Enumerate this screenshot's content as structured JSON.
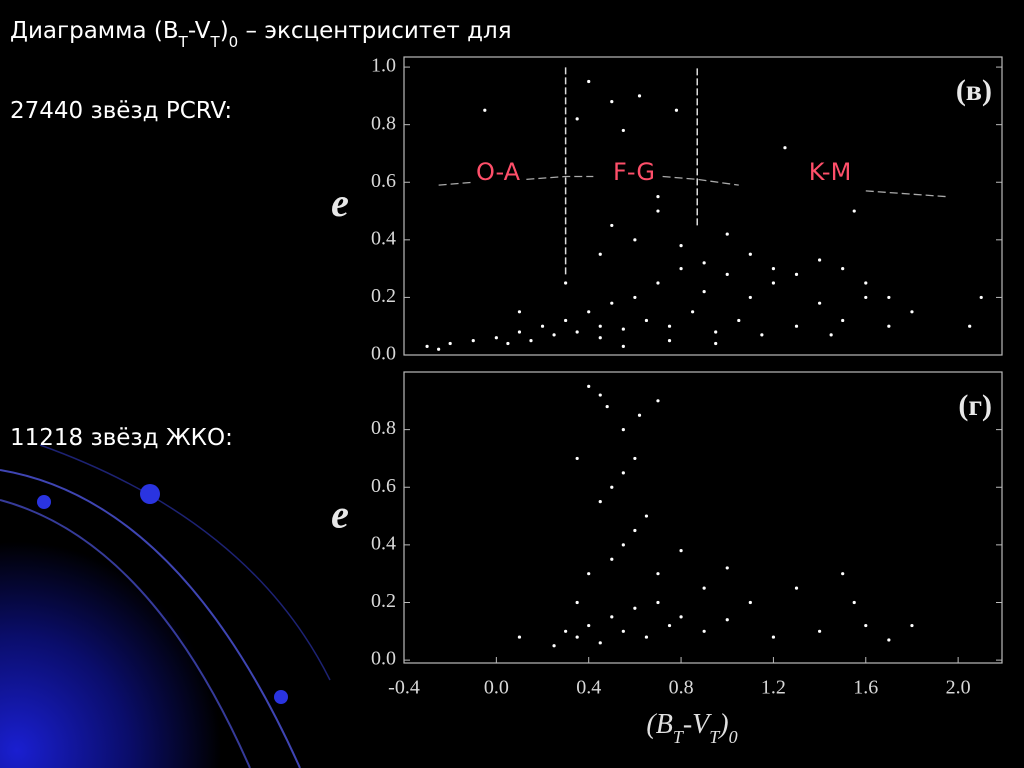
{
  "slide": {
    "title_parts": [
      "Диаграмма (B",
      "T",
      "-V",
      "T",
      ")",
      "0",
      " – эксцентриситет для"
    ],
    "label_top": "27440 звёзд PCRV:",
    "label_bottom": "11218 звёзд ЖКО:"
  },
  "chart_data": [
    {
      "type": "scatter",
      "panel_label": "(в)",
      "y_label": "e",
      "color": "#ffffff",
      "regions": [
        "O-A",
        "F-G",
        "K-M"
      ],
      "dividers": [
        {
          "x": 0.3,
          "y": [
            0.28,
            1.0
          ]
        },
        {
          "x": 0.87,
          "y": [
            0.45,
            1.0
          ]
        }
      ],
      "trend": {
        "x": [
          -0.25,
          -0.1,
          null,
          0.13,
          0.3,
          0.42,
          null,
          0.72,
          0.87,
          1.05,
          null,
          1.6,
          1.95
        ],
        "y": [
          0.59,
          0.6,
          null,
          0.61,
          0.62,
          0.62,
          null,
          0.62,
          0.61,
          0.59,
          null,
          0.57,
          0.55
        ]
      },
      "xlim": [
        -0.4,
        2.19
      ],
      "ylim": [
        0,
        1.035
      ],
      "yticks": [
        {
          "value": 0,
          "label": "0.0"
        },
        0.2,
        0.4,
        0.6,
        0.8,
        {
          "value": 1,
          "label": "1.0"
        }
      ],
      "x": [
        -0.3,
        -0.2,
        -0.1,
        0.0,
        0.05,
        0.1,
        0.15,
        0.2,
        0.25,
        0.3,
        0.35,
        0.4,
        0.45,
        0.5,
        0.55,
        0.6,
        0.65,
        0.7,
        0.75,
        0.8,
        0.85,
        0.9,
        0.95,
        1.0,
        1.05,
        1.1,
        1.15,
        1.2,
        1.3,
        1.4,
        1.5,
        1.6,
        1.7,
        1.8,
        -0.25,
        0.1,
        0.3,
        0.45,
        0.5,
        0.6,
        0.7,
        0.8,
        0.9,
        1.0,
        1.1,
        1.2,
        1.3,
        1.4,
        1.5,
        1.6,
        1.7,
        0.35,
        0.4,
        0.5,
        0.55,
        0.62,
        0.7,
        0.78,
        1.25,
        1.55,
        0.45,
        0.55,
        0.75,
        0.95,
        1.45,
        -0.05,
        2.05,
        2.1
      ],
      "values": [
        0.03,
        0.04,
        0.05,
        0.06,
        0.04,
        0.08,
        0.05,
        0.1,
        0.07,
        0.12,
        0.08,
        0.15,
        0.1,
        0.18,
        0.09,
        0.2,
        0.12,
        0.25,
        0.1,
        0.3,
        0.15,
        0.22,
        0.08,
        0.28,
        0.12,
        0.2,
        0.07,
        0.25,
        0.1,
        0.18,
        0.12,
        0.2,
        0.1,
        0.15,
        0.02,
        0.15,
        0.25,
        0.35,
        0.45,
        0.4,
        0.5,
        0.38,
        0.32,
        0.42,
        0.35,
        0.3,
        0.28,
        0.33,
        0.3,
        0.25,
        0.2,
        0.82,
        0.95,
        0.88,
        0.78,
        0.9,
        0.55,
        0.85,
        0.72,
        0.5,
        0.06,
        0.03,
        0.05,
        0.04,
        0.07,
        0.85,
        0.1,
        0.2
      ]
    },
    {
      "type": "scatter",
      "panel_label": "(г)",
      "y_label": "e",
      "color": "#ffffff",
      "x_label_parts": [
        "(B",
        "T",
        "-V",
        "T",
        ")",
        "0"
      ],
      "xlim": [
        -0.4,
        2.19
      ],
      "ylim": [
        -0.01,
        1.0
      ],
      "xticks": [
        -0.4,
        {
          "value": 0,
          "label": "0.0"
        },
        0.4,
        0.8,
        1.2,
        1.6,
        {
          "value": 2,
          "label": "2.0"
        }
      ],
      "yticks": [
        {
          "value": 0,
          "label": "0.0"
        },
        0.2,
        0.4,
        0.6,
        0.8
      ],
      "x": [
        0.25,
        0.3,
        0.35,
        0.4,
        0.45,
        0.5,
        0.55,
        0.6,
        0.65,
        0.7,
        0.75,
        0.8,
        0.9,
        1.0,
        1.1,
        1.2,
        1.3,
        1.4,
        1.5,
        1.6,
        1.7,
        1.8,
        0.35,
        0.4,
        0.5,
        0.55,
        0.6,
        0.65,
        0.7,
        0.8,
        0.9,
        1.0,
        0.45,
        0.5,
        0.55,
        0.6,
        0.62,
        0.7,
        0.4,
        0.45,
        0.48,
        0.55,
        0.1,
        0.35,
        1.55
      ],
      "values": [
        0.05,
        0.1,
        0.08,
        0.12,
        0.06,
        0.15,
        0.1,
        0.18,
        0.08,
        0.2,
        0.12,
        0.15,
        0.1,
        0.14,
        0.2,
        0.08,
        0.25,
        0.1,
        0.3,
        0.12,
        0.07,
        0.12,
        0.2,
        0.3,
        0.35,
        0.4,
        0.45,
        0.5,
        0.3,
        0.38,
        0.25,
        0.32,
        0.55,
        0.6,
        0.65,
        0.7,
        0.85,
        0.9,
        0.95,
        0.92,
        0.88,
        0.8,
        0.08,
        0.7,
        0.2
      ]
    }
  ]
}
